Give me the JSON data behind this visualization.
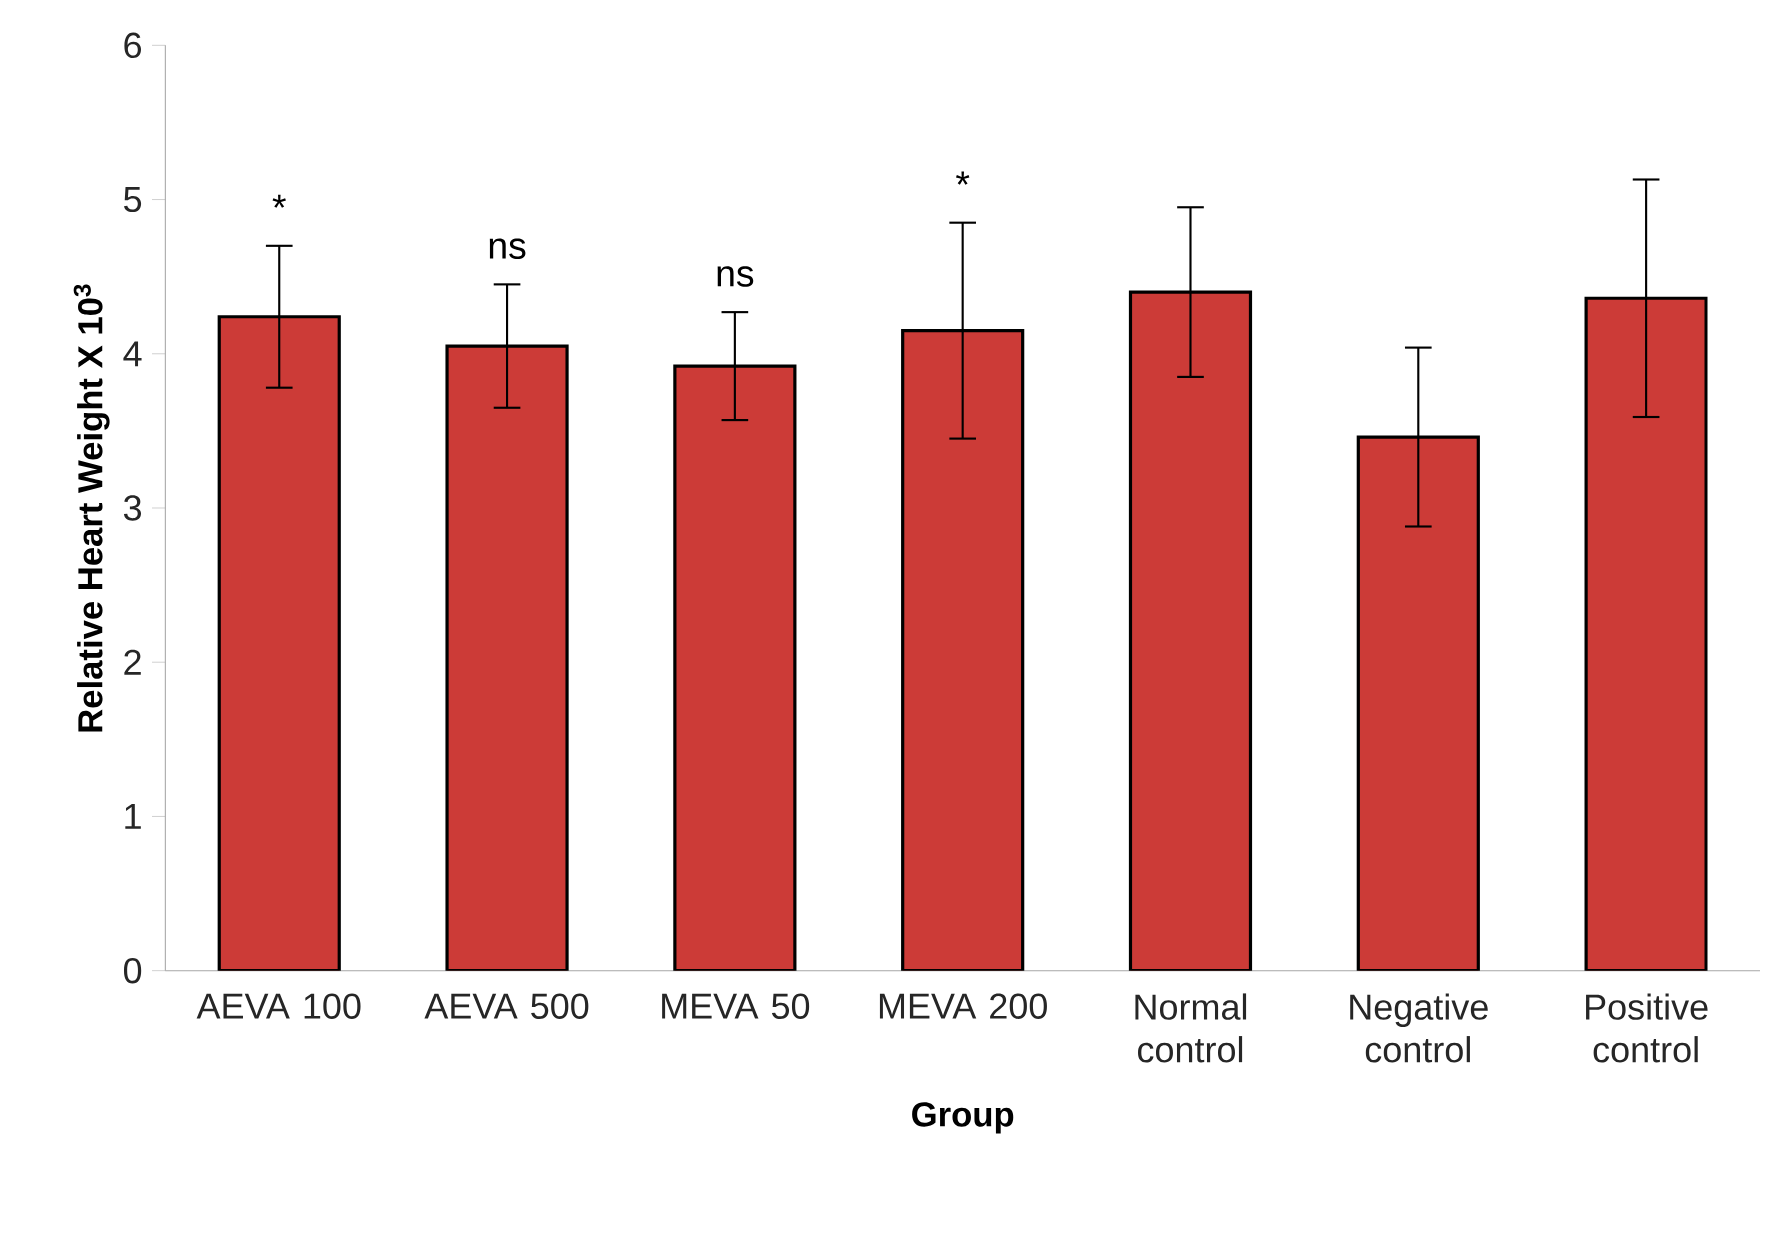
{
  "chart_data": {
    "type": "bar",
    "xlabel": "Group",
    "ylabel": "Relative Heart Weight X 10$^{3}$",
    "categories": [
      "AEVA 100",
      "AEVA 500",
      "MEVA 50",
      "MEVA 200",
      "Normal control",
      "Negative control",
      "Positive control"
    ],
    "values": [
      4.24,
      4.05,
      3.92,
      4.15,
      4.4,
      3.46,
      4.36
    ],
    "errors": [
      0.46,
      0.4,
      0.35,
      0.7,
      0.55,
      0.58,
      0.77
    ],
    "color": "#cc3b37",
    "ylim": [
      0,
      6
    ],
    "yticks": [
      0,
      1,
      2,
      3,
      4,
      5,
      6
    ],
    "grid": false,
    "annotations": [
      "*",
      "ns",
      "ns",
      "*"
    ]
  }
}
